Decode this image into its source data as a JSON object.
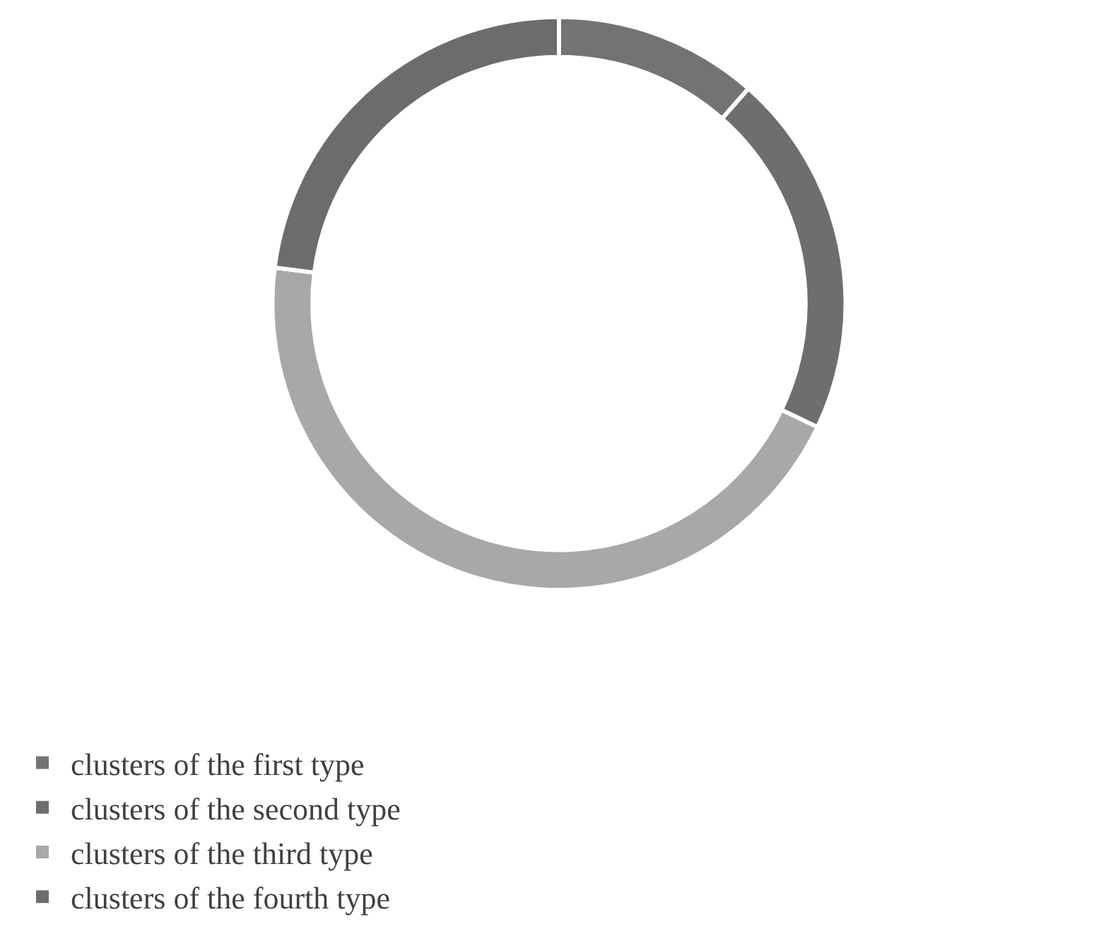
{
  "chart_data": {
    "type": "donut",
    "categories": [
      "clusters of the first type",
      "clusters of the second type",
      "clusters of the third type",
      "clusters of the fourth type"
    ],
    "values": [
      11.5,
      20.6,
      44.9,
      23.0
    ],
    "colors": [
      "#737373",
      "#6e6e6e",
      "#a8a8a8",
      "#6c6c6c"
    ],
    "legend": "bottom"
  }
}
